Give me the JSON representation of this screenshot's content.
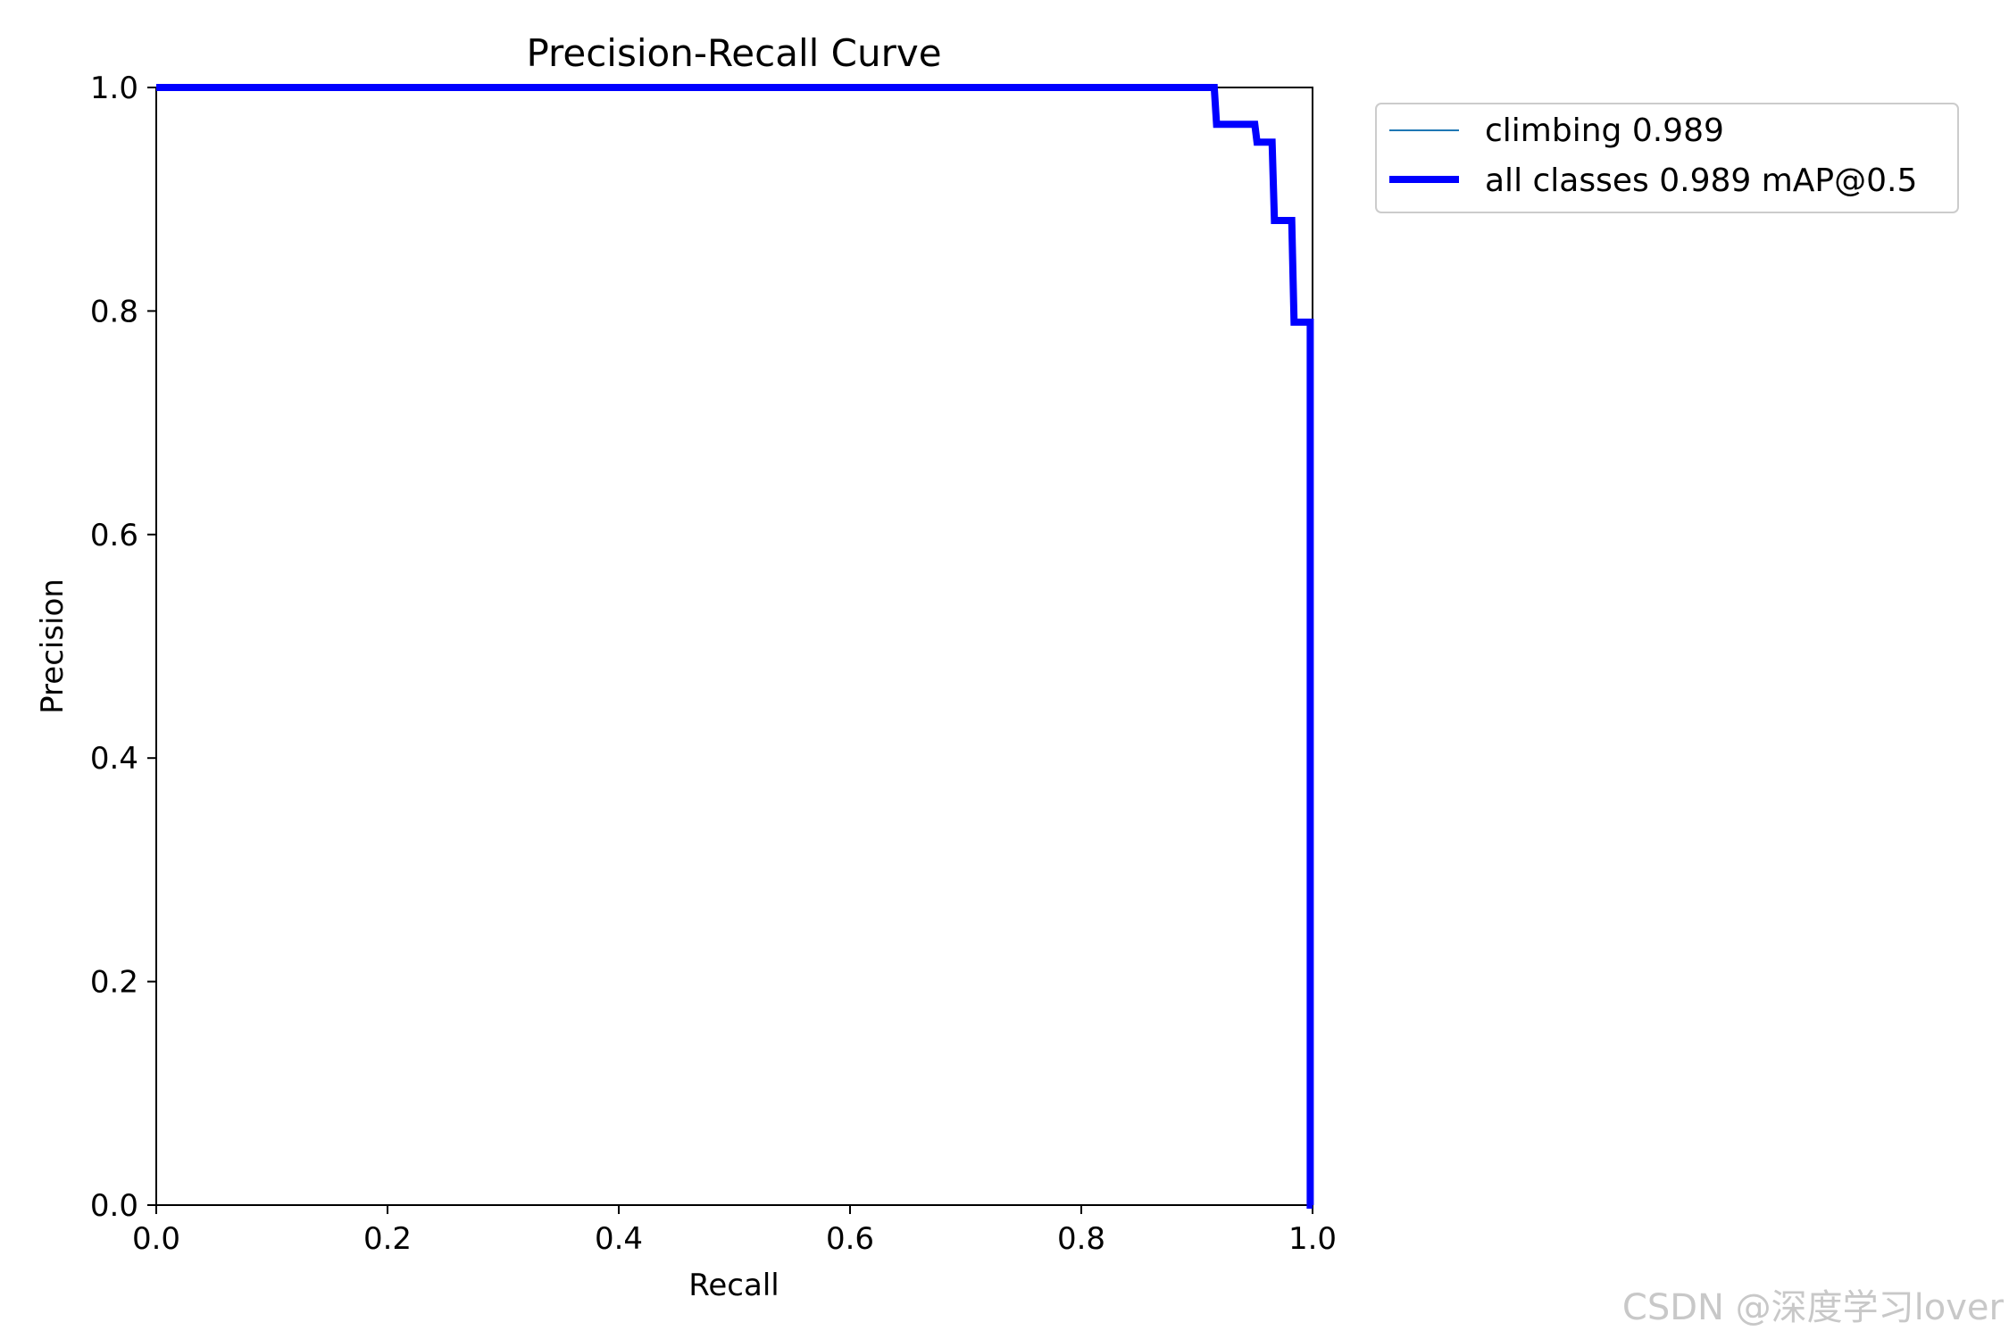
{
  "chart_data": {
    "type": "line",
    "title": "Precision-Recall Curve",
    "xlabel": "Recall",
    "ylabel": "Precision",
    "xlim": [
      0,
      1
    ],
    "ylim": [
      0,
      1
    ],
    "xticks": [
      "0.0",
      "0.2",
      "0.4",
      "0.6",
      "0.8",
      "1.0"
    ],
    "yticks": [
      "0.0",
      "0.2",
      "0.4",
      "0.6",
      "0.8",
      "1.0"
    ],
    "grid": false,
    "legend_position": "outside-top-right",
    "series": [
      {
        "name": "climbing 0.989",
        "color": "#1f77b4",
        "style": "thin",
        "x": [
          0.0,
          0.915,
          0.917,
          0.95,
          0.952,
          0.965,
          0.967,
          0.982,
          0.984,
          0.998,
          0.998,
          1.0
        ],
        "y": [
          1.0,
          1.0,
          0.967,
          0.967,
          0.951,
          0.951,
          0.881,
          0.881,
          0.79,
          0.79,
          0.0,
          0.0
        ]
      },
      {
        "name": "all classes 0.989 mAP@0.5",
        "color": "#0000ff",
        "style": "thick",
        "x": [
          0.0,
          0.915,
          0.917,
          0.95,
          0.952,
          0.965,
          0.967,
          0.982,
          0.984,
          0.998,
          0.998,
          1.0
        ],
        "y": [
          1.0,
          1.0,
          0.967,
          0.967,
          0.951,
          0.951,
          0.881,
          0.881,
          0.79,
          0.79,
          0.0,
          0.0
        ]
      }
    ]
  },
  "watermark": "CSDN @深度学习lover"
}
